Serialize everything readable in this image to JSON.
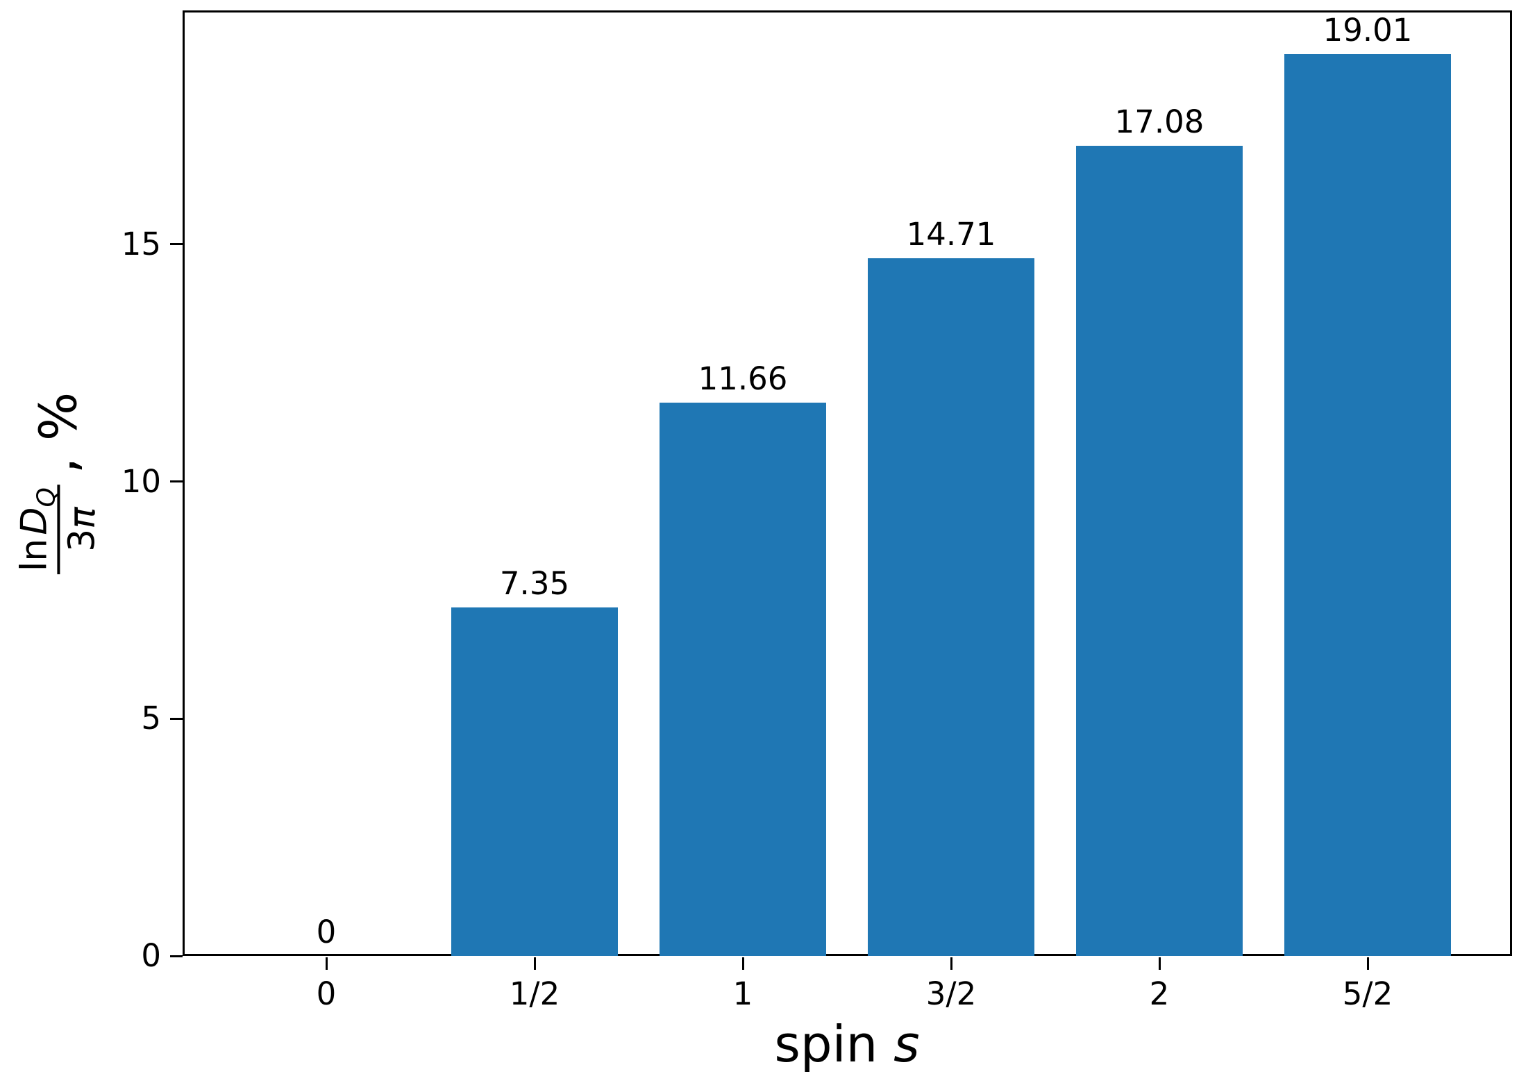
{
  "chart_data": {
    "type": "bar",
    "title": "",
    "xlabel": "spin s",
    "ylabel": "ln D_Q / 3π, %",
    "categories": [
      "0",
      "1/2",
      "1",
      "3/2",
      "2",
      "5/2"
    ],
    "values": [
      0,
      7.35,
      11.66,
      14.71,
      17.08,
      19.01
    ],
    "bar_labels": [
      "0",
      "7.35",
      "11.66",
      "14.71",
      "17.08",
      "19.01"
    ],
    "yticks": [
      0,
      5,
      10,
      15
    ],
    "ytick_labels": [
      "0",
      "5",
      "10",
      "15"
    ],
    "ylim": [
      0,
      19.93
    ],
    "grid": false,
    "legend": null,
    "bar_color": "#1f77b4",
    "axis_color": "#000000",
    "text_color": "#000000",
    "background_color": "#ffffff"
  },
  "labels": {
    "xlabel_prefix": "spin ",
    "xlabel_var": "s",
    "ylabel_num_fn": "ln",
    "ylabel_num_var": "D",
    "ylabel_num_sub": "Q",
    "ylabel_den_num": "3",
    "ylabel_den_var": "π",
    "ylabel_suffix": ", %"
  }
}
